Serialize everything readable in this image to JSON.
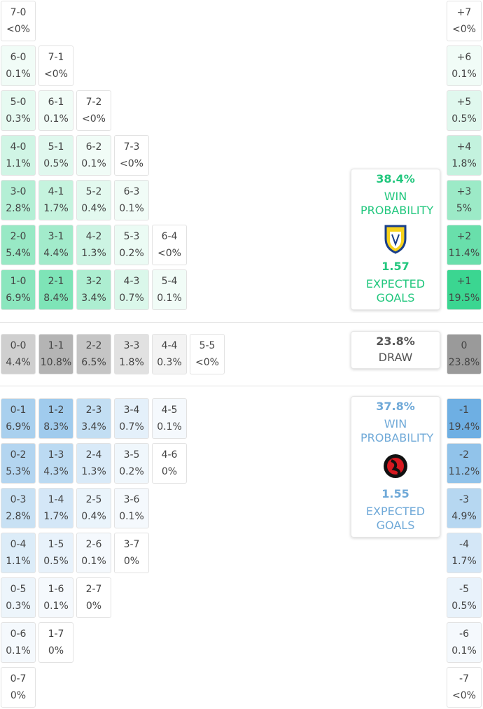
{
  "home": {
    "rows": [
      [
        {
          "score": "7-0",
          "prob": "<0%"
        }
      ],
      [
        {
          "score": "6-0",
          "prob": "0.1%"
        },
        {
          "score": "7-1",
          "prob": "<0%"
        }
      ],
      [
        {
          "score": "5-0",
          "prob": "0.3%"
        },
        {
          "score": "6-1",
          "prob": "0.1%"
        },
        {
          "score": "7-2",
          "prob": "<0%"
        }
      ],
      [
        {
          "score": "4-0",
          "prob": "1.1%"
        },
        {
          "score": "5-1",
          "prob": "0.5%"
        },
        {
          "score": "6-2",
          "prob": "0.1%"
        },
        {
          "score": "7-3",
          "prob": "<0%"
        }
      ],
      [
        {
          "score": "3-0",
          "prob": "2.8%"
        },
        {
          "score": "4-1",
          "prob": "1.7%"
        },
        {
          "score": "5-2",
          "prob": "0.4%"
        },
        {
          "score": "6-3",
          "prob": "0.1%"
        }
      ],
      [
        {
          "score": "2-0",
          "prob": "5.4%"
        },
        {
          "score": "3-1",
          "prob": "4.4%"
        },
        {
          "score": "4-2",
          "prob": "1.3%"
        },
        {
          "score": "5-3",
          "prob": "0.2%"
        },
        {
          "score": "6-4",
          "prob": "<0%"
        }
      ],
      [
        {
          "score": "1-0",
          "prob": "6.9%"
        },
        {
          "score": "2-1",
          "prob": "8.4%"
        },
        {
          "score": "3-2",
          "prob": "3.4%"
        },
        {
          "score": "4-3",
          "prob": "0.7%"
        },
        {
          "score": "5-4",
          "prob": "0.1%"
        }
      ]
    ],
    "margins": [
      {
        "score": "+7",
        "prob": "<0%"
      },
      {
        "score": "+6",
        "prob": "0.1%"
      },
      {
        "score": "+5",
        "prob": "0.5%"
      },
      {
        "score": "+4",
        "prob": "1.8%"
      },
      {
        "score": "+3",
        "prob": "5%"
      },
      {
        "score": "+2",
        "prob": "11.4%"
      },
      {
        "score": "+1",
        "prob": "19.5%"
      }
    ],
    "summary": {
      "win_pct": "38.4%",
      "win_label": "WIN PROBABILITY",
      "xg": "1.57",
      "xg_label": "EXPECTED GOALS"
    }
  },
  "draw": {
    "rows": [
      [
        {
          "score": "0-0",
          "prob": "4.4%"
        },
        {
          "score": "1-1",
          "prob": "10.8%"
        },
        {
          "score": "2-2",
          "prob": "6.5%"
        },
        {
          "score": "3-3",
          "prob": "1.8%"
        },
        {
          "score": "4-4",
          "prob": "0.3%"
        },
        {
          "score": "5-5",
          "prob": "<0%"
        }
      ]
    ],
    "margins": [
      {
        "score": "0",
        "prob": "23.8%"
      }
    ],
    "summary": {
      "pct": "23.8%",
      "label": "DRAW"
    }
  },
  "away": {
    "rows": [
      [
        {
          "score": "0-1",
          "prob": "6.9%"
        },
        {
          "score": "1-2",
          "prob": "8.3%"
        },
        {
          "score": "2-3",
          "prob": "3.4%"
        },
        {
          "score": "3-4",
          "prob": "0.7%"
        },
        {
          "score": "4-5",
          "prob": "0.1%"
        }
      ],
      [
        {
          "score": "0-2",
          "prob": "5.3%"
        },
        {
          "score": "1-3",
          "prob": "4.3%"
        },
        {
          "score": "2-4",
          "prob": "1.3%"
        },
        {
          "score": "3-5",
          "prob": "0.2%"
        },
        {
          "score": "4-6",
          "prob": "0%"
        }
      ],
      [
        {
          "score": "0-3",
          "prob": "2.8%"
        },
        {
          "score": "1-4",
          "prob": "1.7%"
        },
        {
          "score": "2-5",
          "prob": "0.4%"
        },
        {
          "score": "3-6",
          "prob": "0.1%"
        }
      ],
      [
        {
          "score": "0-4",
          "prob": "1.1%"
        },
        {
          "score": "1-5",
          "prob": "0.5%"
        },
        {
          "score": "2-6",
          "prob": "0.1%"
        },
        {
          "score": "3-7",
          "prob": "0%"
        }
      ],
      [
        {
          "score": "0-5",
          "prob": "0.3%"
        },
        {
          "score": "1-6",
          "prob": "0.1%"
        },
        {
          "score": "2-7",
          "prob": "0%"
        }
      ],
      [
        {
          "score": "0-6",
          "prob": "0.1%"
        },
        {
          "score": "1-7",
          "prob": "0%"
        }
      ],
      [
        {
          "score": "0-7",
          "prob": "0%"
        }
      ]
    ],
    "margins": [
      {
        "score": "-1",
        "prob": "19.4%"
      },
      {
        "score": "-2",
        "prob": "11.2%"
      },
      {
        "score": "-3",
        "prob": "4.9%"
      },
      {
        "score": "-4",
        "prob": "1.7%"
      },
      {
        "score": "-5",
        "prob": "0.5%"
      },
      {
        "score": "-6",
        "prob": "0.1%"
      },
      {
        "score": "-7",
        "prob": "<0%"
      }
    ],
    "summary": {
      "win_pct": "37.8%",
      "win_label": "WIN PROBABILITY",
      "xg": "1.55",
      "xg_label": "EXPECTED GOALS"
    }
  }
}
